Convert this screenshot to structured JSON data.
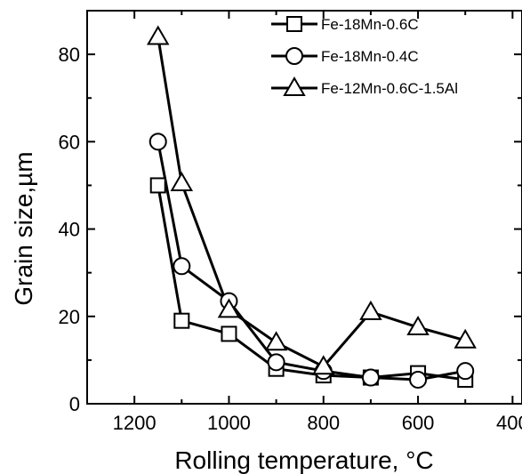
{
  "chart_data": {
    "type": "line",
    "xlabel": "Rolling temperature, °C",
    "ylabel": "Grain size,µm",
    "xlim": [
      1300,
      380
    ],
    "ylim": [
      0,
      90
    ],
    "x_reversed": true,
    "x_ticks": [
      1200,
      1000,
      800,
      600,
      400
    ],
    "y_ticks": [
      0,
      20,
      40,
      60,
      80
    ],
    "x_tick_labels": [
      "1200",
      "1000",
      "800",
      "600",
      "400"
    ],
    "y_tick_labels": [
      "0",
      "20",
      "40",
      "60",
      "80"
    ],
    "grid": false,
    "legend_position": "top-right",
    "series": [
      {
        "name": "Fe-18Mn-0.6C",
        "marker": "square",
        "x": [
          1150,
          1100,
          1000,
          900,
          800,
          700,
          600,
          500
        ],
        "y": [
          50,
          19,
          16,
          8,
          6.5,
          6,
          7,
          5.5
        ]
      },
      {
        "name": "Fe-18Mn-0.4C",
        "marker": "circle",
        "x": [
          1150,
          1100,
          1000,
          900,
          800,
          700,
          600,
          500
        ],
        "y": [
          60,
          31.5,
          23.5,
          9.5,
          7.5,
          6,
          5.5,
          7.5
        ]
      },
      {
        "name": "Fe-12Mn-0.6C-1.5Al",
        "marker": "triangle",
        "x": [
          1150,
          1100,
          1000,
          900,
          800,
          700,
          600,
          500
        ],
        "y": [
          84,
          50.5,
          21.5,
          14,
          8.5,
          21,
          17.5,
          14.5
        ]
      }
    ]
  }
}
